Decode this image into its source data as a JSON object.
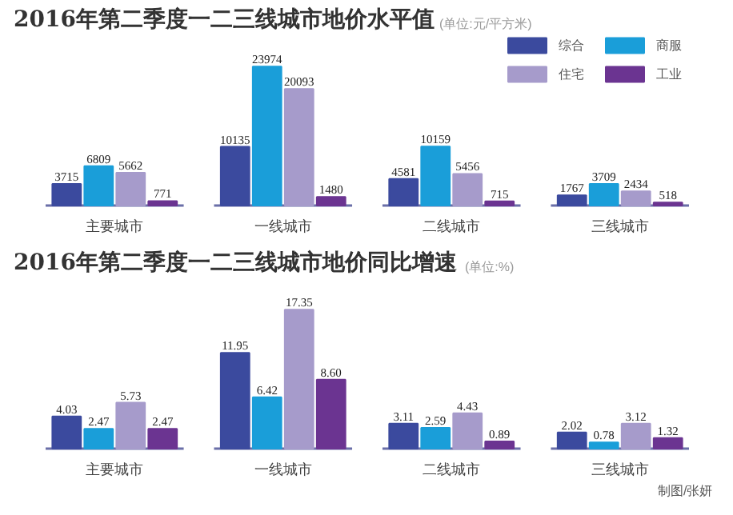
{
  "chart_data": [
    {
      "type": "bar",
      "title": "2016年第二季度一二三线城市地价水平值",
      "subtitle": "(单位:元/平方米)",
      "categories": [
        "主要城市",
        "一线城市",
        "二线城市",
        "三线城市"
      ],
      "data_labels": true,
      "legend": "top right",
      "grid": false,
      "series": [
        {
          "name": "综合",
          "color": "#3b4a9e",
          "values": [
            3715,
            10135,
            4581,
            1767
          ]
        },
        {
          "name": "商服",
          "color": "#1a9ed9",
          "values": [
            6809,
            23974,
            10159,
            3709
          ]
        },
        {
          "name": "住宅",
          "color": "#a69bcb",
          "values": [
            5662,
            20093,
            5456,
            2434
          ]
        },
        {
          "name": "工业",
          "color": "#6b3491",
          "values": [
            771,
            1480,
            715,
            518
          ]
        }
      ]
    },
    {
      "type": "bar",
      "title": "2016年第二季度一二三线城市地价同比增速",
      "subtitle": "(单位:%)",
      "categories": [
        "主要城市",
        "一线城市",
        "二线城市",
        "三线城市"
      ],
      "data_labels": true,
      "grid": false,
      "annotations": [
        "制图/张妍"
      ],
      "series": [
        {
          "color": "#3b4a9e",
          "values": [
            4.03,
            11.95,
            3.11,
            2.02
          ],
          "value_labels": [
            "4.03",
            "11.95",
            "3.11",
            "2.02"
          ]
        },
        {
          "color": "#1a9ed9",
          "values": [
            2.47,
            6.42,
            2.59,
            0.78
          ],
          "value_labels": [
            "2.47",
            "6.42",
            "2.59",
            "0.78"
          ]
        },
        {
          "color": "#a69bcb",
          "values": [
            5.73,
            17.35,
            4.43,
            3.12
          ],
          "value_labels": [
            "5.73",
            "17.35",
            "4.43",
            "3.12"
          ]
        },
        {
          "color": "#6b3491",
          "values": [
            2.47,
            8.6,
            0.89,
            1.32
          ],
          "value_labels": [
            "2.47",
            "8.60",
            "0.89",
            "1.32"
          ]
        }
      ]
    }
  ]
}
